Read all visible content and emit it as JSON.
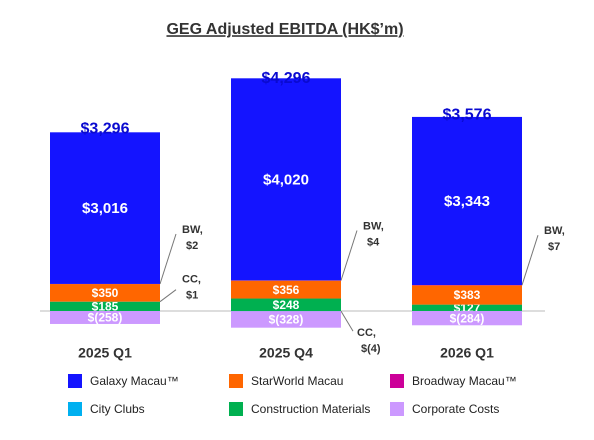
{
  "chart_data": {
    "type": "stacked-bar",
    "title": "GEG Adjusted EBITDA (HK$’m)",
    "categories": [
      "2025 Q1",
      "2025 Q4",
      "2026 Q1"
    ],
    "series": [
      {
        "name": "Galaxy Macau™",
        "color": "#1414ff",
        "values": [
          3016,
          4020,
          3343
        ],
        "value_labels": [
          "$3,016",
          "$4,020",
          "$3,343"
        ]
      },
      {
        "name": "StarWorld Macau",
        "color": "#ff6600",
        "values": [
          350,
          356,
          383
        ],
        "value_labels": [
          "$350",
          "$356",
          "$383"
        ]
      },
      {
        "name": "Broadway Macau™",
        "color": "#cc0099",
        "values": [
          2,
          4,
          7
        ],
        "value_labels": [
          "BW, $2",
          "BW, $4",
          "BW, $7"
        ]
      },
      {
        "name": "City Clubs",
        "color": "#00b0f0",
        "values": [
          1,
          -4,
          0
        ],
        "value_labels": [
          "CC, $1",
          "CC, $(4)",
          null
        ]
      },
      {
        "name": "Construction Materials",
        "color": "#00b050",
        "values": [
          185,
          248,
          127
        ],
        "value_labels": [
          "$185",
          "$248",
          "$127"
        ]
      },
      {
        "name": "Corporate Costs",
        "color": "#cc99ff",
        "values": [
          -258,
          -328,
          -284
        ],
        "value_labels": [
          "$(258)",
          "$(328)",
          "$(284)"
        ]
      }
    ],
    "totals": [
      3296,
      4296,
      3576
    ],
    "total_labels": [
      "$3,296",
      "$4,296",
      "$3,576"
    ],
    "total_color": "#0a0ad0"
  }
}
